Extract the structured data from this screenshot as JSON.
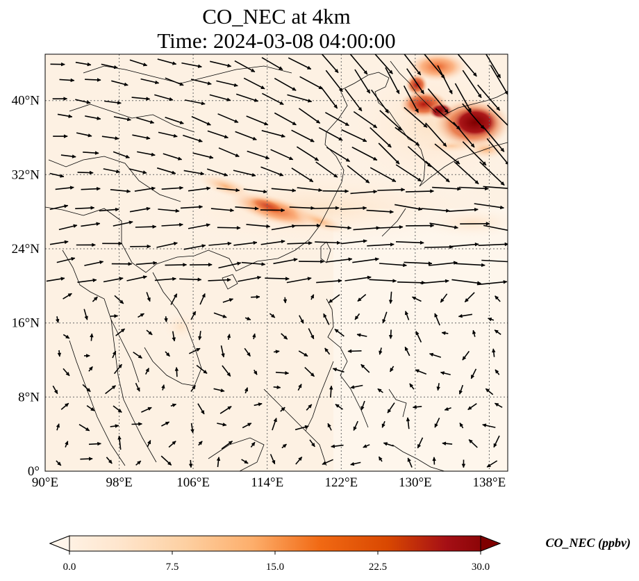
{
  "title": {
    "line1": "CO_NEC at 4km",
    "line2": "Time: 2024-03-08 04:00:00"
  },
  "map": {
    "lon_range": [
      90,
      140
    ],
    "lat_range": [
      0,
      45
    ],
    "lon_ticks": [
      "90°E",
      "98°E",
      "106°E",
      "114°E",
      "122°E",
      "130°E",
      "138°E"
    ],
    "lat_ticks": [
      "0°",
      "8°N",
      "16°N",
      "24°N",
      "32°N",
      "40°N"
    ],
    "gridlines": true
  },
  "colorbar": {
    "label": "CO_NEC (ppbv)",
    "ticks": [
      "0.0",
      "7.5",
      "15.0",
      "22.5",
      "30.0"
    ],
    "min": 0,
    "max": 30,
    "colors": [
      "#fff5eb",
      "#fee6ce",
      "#fdd0a2",
      "#fdae6b",
      "#f16913",
      "#d94801",
      "#a50f15",
      "#7f0000"
    ]
  },
  "plumes": [
    {
      "name": "korea-japan-plume",
      "lon": 136.5,
      "lat": 37.5,
      "value": 30
    },
    {
      "name": "northeast-plume",
      "lon": 131,
      "lat": 40,
      "value": 22
    },
    {
      "name": "north-plume",
      "lon": 132,
      "lat": 43.5,
      "value": 18
    },
    {
      "name": "south-china-plume",
      "lon": 114,
      "lat": 28.5,
      "value": 17
    },
    {
      "name": "west-plume",
      "lon": 108,
      "lat": 30.5,
      "value": 8
    }
  ]
}
